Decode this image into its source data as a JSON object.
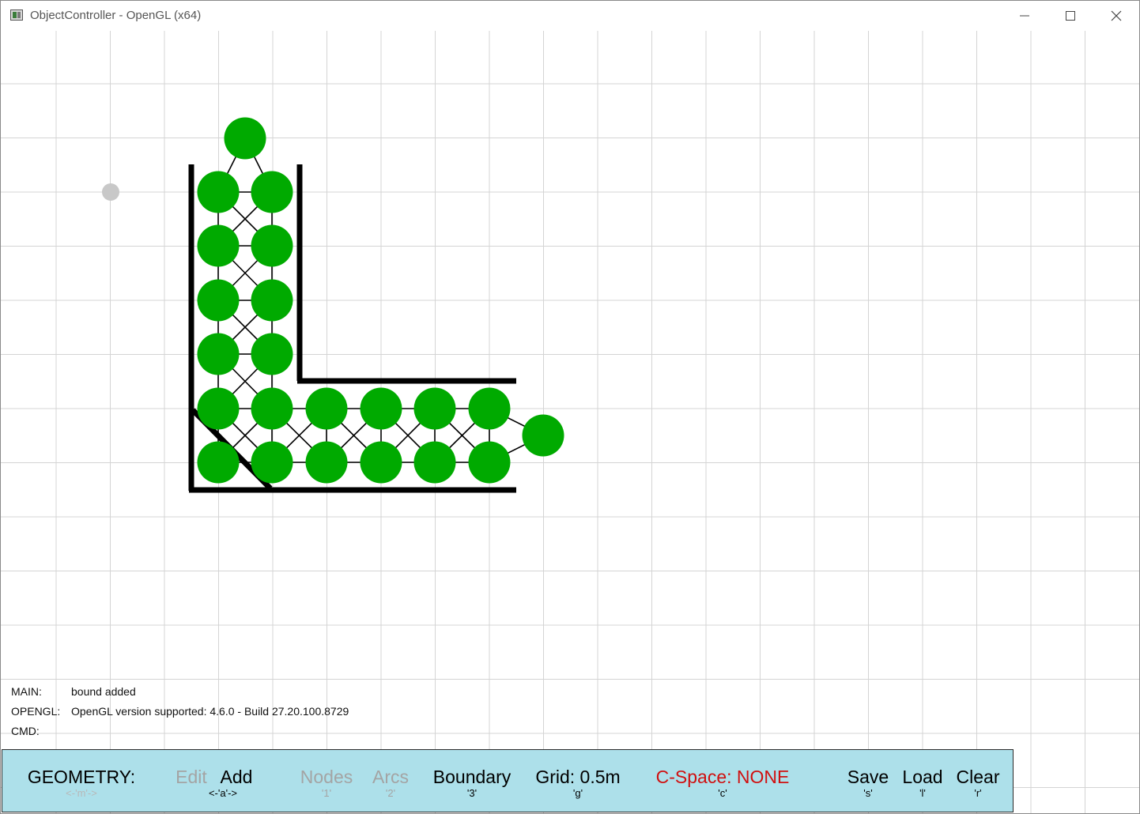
{
  "window": {
    "title": "ObjectController - OpenGL (x64)",
    "minimize_glyph": "—",
    "maximize_glyph": "☐",
    "close_glyph": "✕"
  },
  "canvas": {
    "grid_color": "#d4d4d4",
    "node_color": "#00aa00",
    "boundary_color": "#000000",
    "ghost_node_color": "#c8c8c8"
  },
  "log": {
    "main_key": "MAIN:",
    "main_value": "bound added",
    "opengl_key": "OPENGL:",
    "opengl_value": "OpenGL version supported: 4.6.0 - Build 27.20.100.8729",
    "cmd_key": "CMD:",
    "cmd_value": ""
  },
  "toolbar": {
    "background": "#ade0ea",
    "geometry": {
      "label": "GEOMETRY:",
      "key": "<-'m'->"
    },
    "edit": {
      "label": "Edit",
      "key": ""
    },
    "add": {
      "label": "Add",
      "key": "<-'a'->"
    },
    "nodes": {
      "label": "Nodes",
      "key": "'1'"
    },
    "arcs": {
      "label": "Arcs",
      "key": "'2'"
    },
    "boundary": {
      "label": "Boundary",
      "key": "'3'"
    },
    "grid": {
      "label": "Grid: 0.5m",
      "key": "'g'"
    },
    "cspace": {
      "label": "C-Space: NONE",
      "key": "'c'",
      "color": "#d01010"
    },
    "save": {
      "label": "Save",
      "key": "'s'"
    },
    "load": {
      "label": "Load",
      "key": "'l'"
    },
    "clear": {
      "label": "Clear",
      "key": "'r'"
    }
  }
}
